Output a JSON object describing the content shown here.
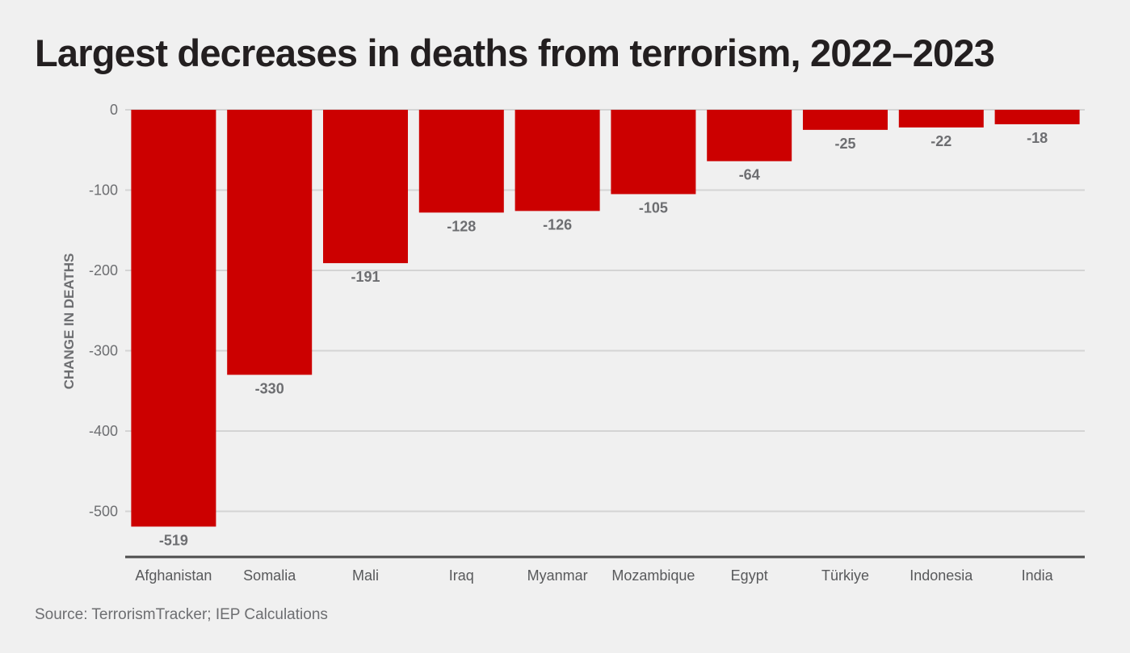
{
  "title": "Largest decreases in deaths from terrorism, 2022–2023",
  "source": "Source: TerrorismTracker; IEP Calculations",
  "colors": {
    "bar": "#cc0000",
    "grid": "#d4d4d4",
    "axis": "#4d4d4d"
  },
  "chart_data": {
    "type": "bar",
    "title": "Largest decreases in deaths from terrorism, 2022–2023",
    "xlabel": "",
    "ylabel": "CHANGE IN DEATHS",
    "categories": [
      "Afghanistan",
      "Somalia",
      "Mali",
      "Iraq",
      "Myanmar",
      "Mozambique",
      "Egypt",
      "Türkiye",
      "Indonesia",
      "India"
    ],
    "values": [
      -519,
      -330,
      -191,
      -128,
      -126,
      -105,
      -64,
      -25,
      -22,
      -18
    ],
    "data_labels": [
      "-519",
      "-330",
      "-191",
      "-128",
      "-126",
      "-105",
      "-64",
      "-25",
      "-22",
      "-18"
    ],
    "yticks": [
      0,
      -100,
      -200,
      -300,
      -400,
      -500
    ],
    "ytick_labels": [
      "0",
      "-100",
      "-200",
      "-300",
      "-400",
      "-500"
    ],
    "ylim": [
      -555,
      0
    ],
    "grid": true,
    "legend": "none"
  }
}
